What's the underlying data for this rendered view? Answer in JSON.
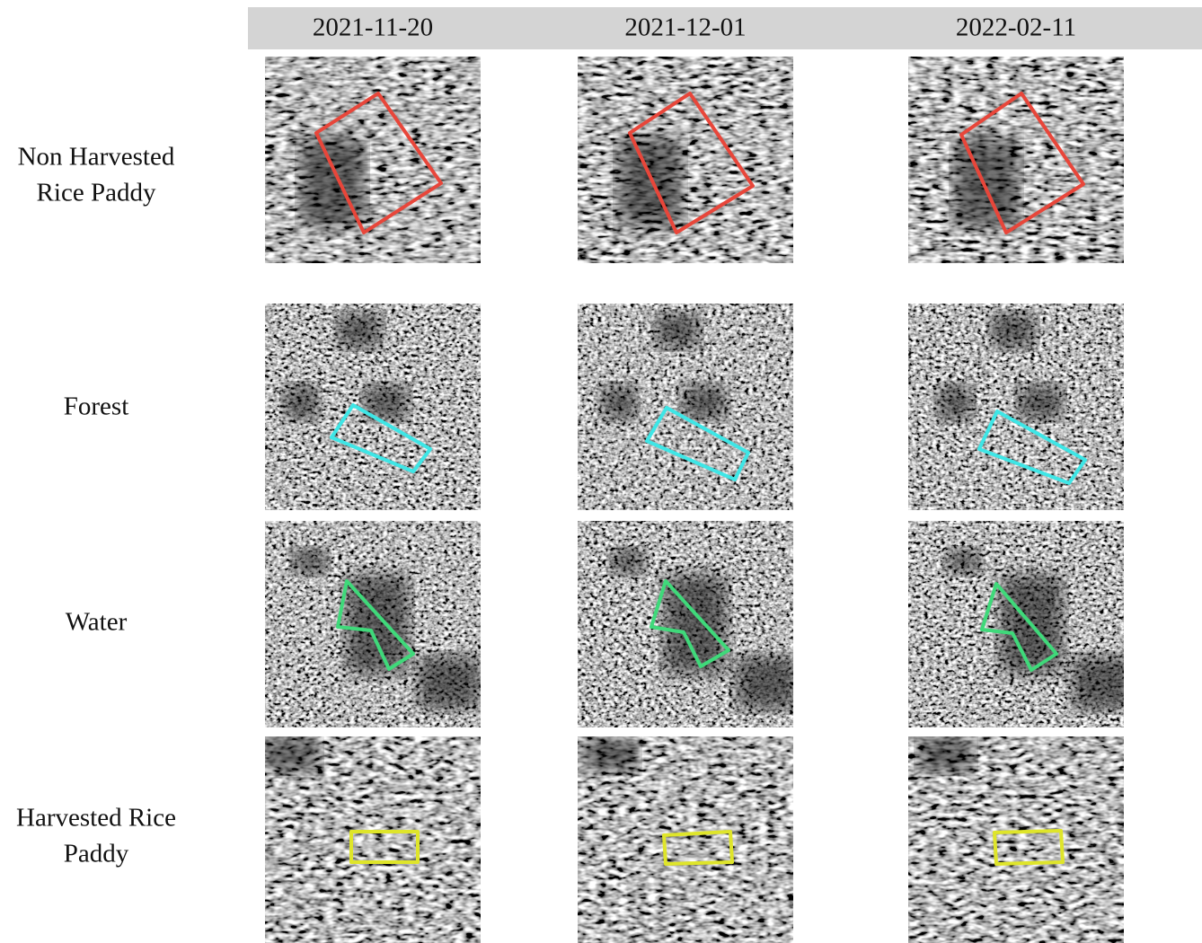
{
  "header": {
    "dates": [
      "2021-11-20",
      "2021-12-01",
      "2022-02-11"
    ]
  },
  "rows": [
    {
      "label": [
        "Non Harvested",
        "Rice Paddy"
      ]
    },
    {
      "label": [
        "Forest"
      ]
    },
    {
      "label": [
        "Water"
      ]
    },
    {
      "label": [
        "Harvested Rice",
        "Paddy"
      ]
    }
  ]
}
